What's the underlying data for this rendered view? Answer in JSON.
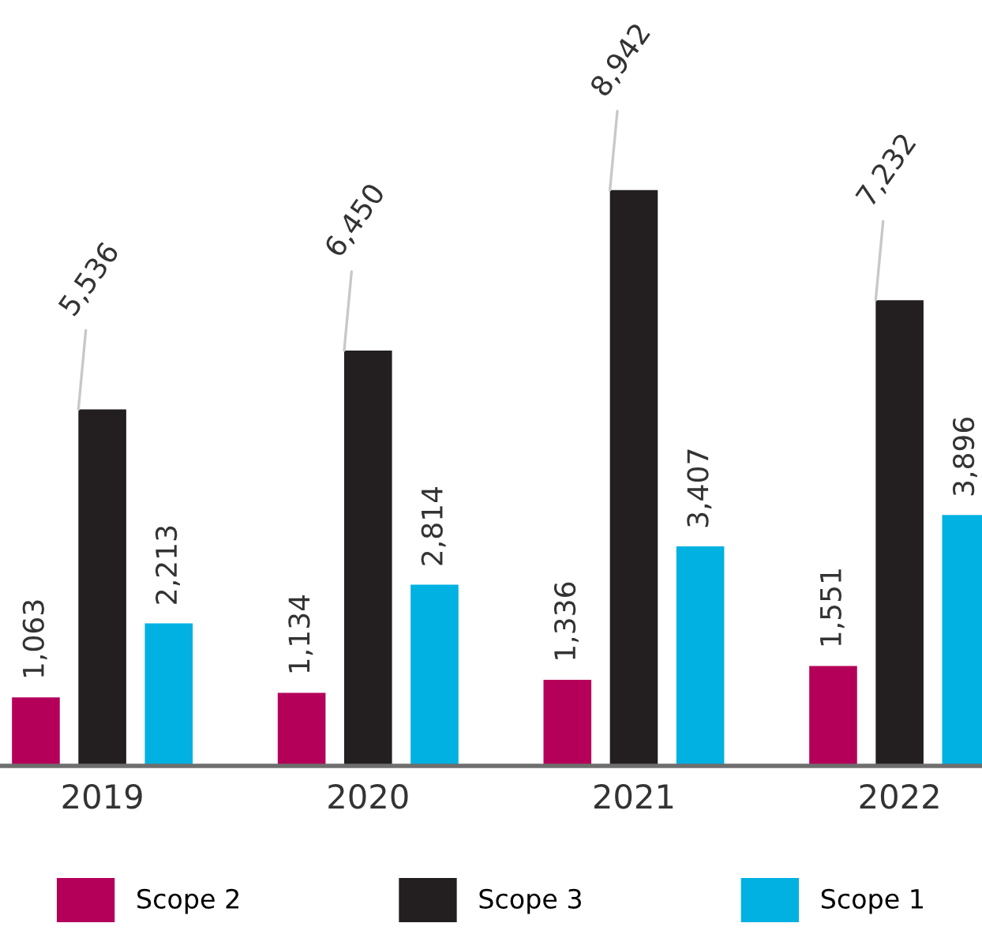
{
  "chart_data": {
    "type": "bar",
    "categories": [
      "2019",
      "2020",
      "2021",
      "2022"
    ],
    "series": [
      {
        "name": "Scope 2",
        "color": "#b5005a",
        "values": [
          1063,
          1134,
          1336,
          1551
        ],
        "value_labels": [
          "1,063",
          "1,134",
          "1,336",
          "1,551"
        ]
      },
      {
        "name": "Scope 3",
        "color": "#231f20",
        "values": [
          5536,
          6450,
          8942,
          7232
        ],
        "value_labels": [
          "5,536",
          "6,450",
          "8,942",
          "7,232"
        ]
      },
      {
        "name": "Scope 1",
        "color": "#00b1e2",
        "values": [
          2213,
          2814,
          3407,
          3896
        ],
        "value_labels": [
          "2,213",
          "2,814",
          "3,407",
          "3,896"
        ]
      }
    ],
    "tick_labels": "x",
    "legend": "bottom"
  }
}
